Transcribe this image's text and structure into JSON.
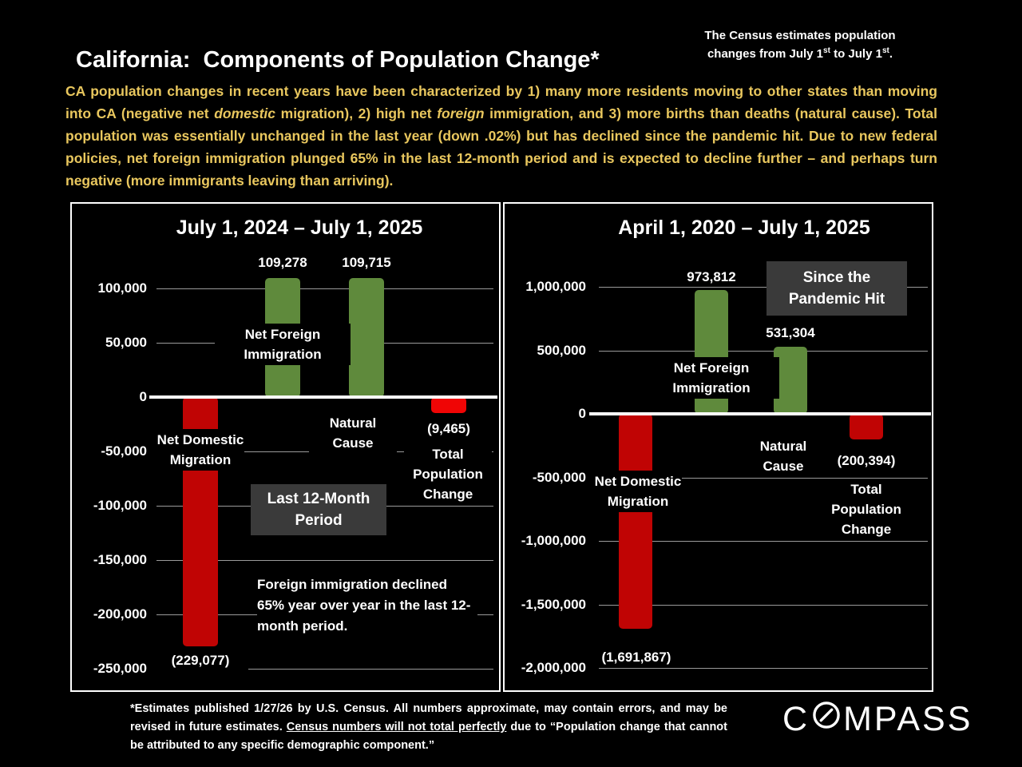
{
  "page": {
    "title": "California:  Components of Population Change*",
    "census_note": {
      "line1": "The Census estimates population",
      "l2a": "changes from July 1",
      "sup1": "st",
      "l2b": " to July 1",
      "sup2": "st",
      "l2c": "."
    },
    "intro": {
      "part1": "CA population changes in recent years have been characterized by 1) many more residents moving to other states than moving into CA (negative net ",
      "italic1": "domestic",
      "part2": " migration), 2) high net ",
      "italic2": "foreign",
      "part3": " immigration, and 3) more births than deaths (natural cause). Total population was essentially unchanged in the last year (down .02%) but has declined since the pandemic hit. Due to new federal policies, net foreign immigration plunged 65% in the last 12-month period and is expected to decline further – and perhaps turn negative (more immigrants leaving than arriving)."
    },
    "footnote": {
      "part1": "*Estimates published 1/27/26 by U.S. Census. All numbers approximate, may contain errors, and may be revised in future estimates. ",
      "underlined": "Census numbers will not total perfectly",
      "part2": " due to “Population change that cannot be attributed to any specific demographic component.”"
    },
    "logo": {
      "c": "C",
      "rest": "MPASS"
    }
  },
  "colors": {
    "accent_yellow": "#e9c75e",
    "bar_green": "#5f8a3c",
    "bar_dark_red": "#c00404",
    "bar_bright_red": "#f00505",
    "callout_gray": "#3a3a3a"
  },
  "chart_data": [
    {
      "type": "bar",
      "title": "July 1, 2024 – July 1, 2025",
      "xlabel": "",
      "ylabel": "",
      "ylim": [
        -250000,
        125000
      ],
      "grid": true,
      "yticks": [
        {
          "value": 100000,
          "label": "100,000"
        },
        {
          "value": 50000,
          "label": "50,000"
        },
        {
          "value": 0,
          "label": "0"
        },
        {
          "value": -50000,
          "label": "-50,000"
        },
        {
          "value": -100000,
          "label": "-100,000"
        },
        {
          "value": -150000,
          "label": "-150,000"
        },
        {
          "value": -200000,
          "label": "-200,000"
        },
        {
          "value": -250000,
          "label": "-250,000"
        }
      ],
      "bars": [
        {
          "category": "Net Domestic Migration",
          "value": -229077,
          "value_label": "(229,077)",
          "color": "#c00404"
        },
        {
          "category": "Net Foreign Immigration",
          "value": 109278,
          "value_label": "109,278",
          "color": "#5f8a3c"
        },
        {
          "category": "Natural Cause",
          "value": 109715,
          "value_label": "109,715",
          "color": "#5f8a3c"
        },
        {
          "category": "Total Population Change",
          "value": -9465,
          "value_label": "(9,465)",
          "color": "#f00505"
        }
      ],
      "callout_box": "Last 12-Month Period",
      "note": "Foreign immigration declined 65% year over year in the last 12-month period."
    },
    {
      "type": "bar",
      "title": "April 1, 2020 – July 1, 2025",
      "xlabel": "",
      "ylabel": "",
      "ylim": [
        -2000000,
        1250000
      ],
      "grid": true,
      "yticks": [
        {
          "value": 1000000,
          "label": "1,000,000"
        },
        {
          "value": 500000,
          "label": "500,000"
        },
        {
          "value": 0,
          "label": "0"
        },
        {
          "value": -500000,
          "label": "-500,000"
        },
        {
          "value": -1000000,
          "label": "-1,000,000"
        },
        {
          "value": -1500000,
          "label": "-1,500,000"
        },
        {
          "value": -2000000,
          "label": "-2,000,000"
        }
      ],
      "bars": [
        {
          "category": "Net Domestic Migration",
          "value": -1691867,
          "value_label": "(1,691,867)",
          "color": "#c00404"
        },
        {
          "category": "Net Foreign Immigration",
          "value": 973812,
          "value_label": "973,812",
          "color": "#5f8a3c"
        },
        {
          "category": "Natural Cause",
          "value": 531304,
          "value_label": "531,304",
          "color": "#5f8a3c"
        },
        {
          "category": "Total Population Change",
          "value": -200394,
          "value_label": "(200,394)",
          "color": "#c00404"
        }
      ],
      "callout_box": "Since the Pandemic Hit",
      "note": ""
    }
  ]
}
